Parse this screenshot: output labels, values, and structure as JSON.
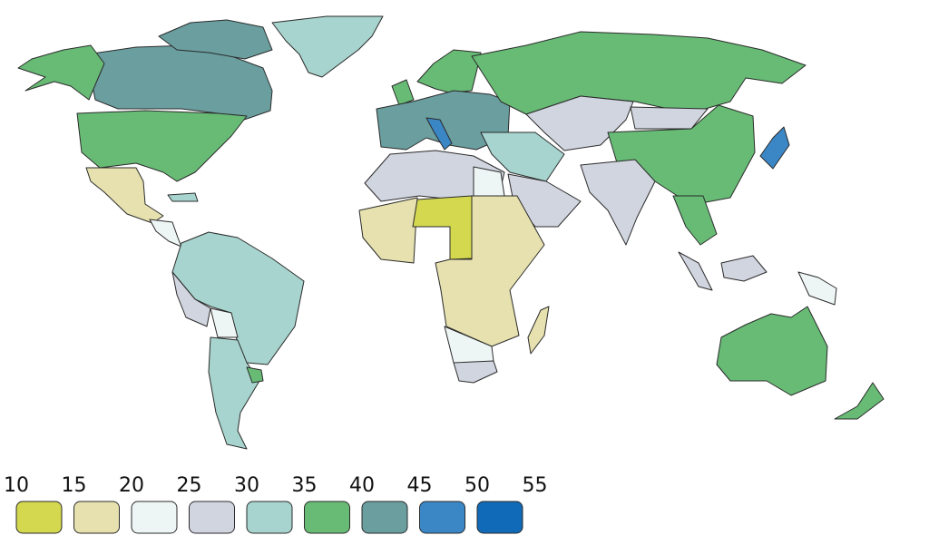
{
  "legend": {
    "ticks": [
      10,
      15,
      20,
      25,
      30,
      35,
      40,
      45,
      50,
      55
    ],
    "colors": [
      "#d3d84f",
      "#e6e1ae",
      "#eef6f5",
      "#d1d5df",
      "#a7d4ce",
      "#67bb75",
      "#6a9e9f",
      "#3b86c5",
      "#106ab7"
    ]
  }
}
